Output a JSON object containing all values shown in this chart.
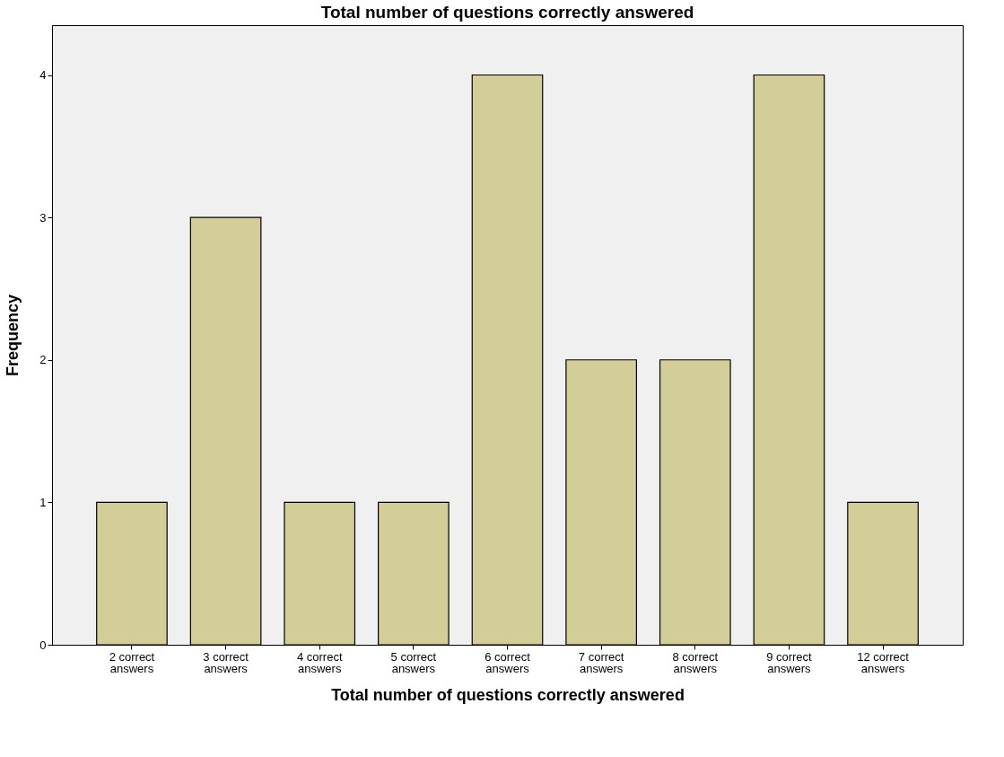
{
  "chart_data": {
    "type": "bar",
    "title": "Total number of questions correctly answered",
    "xlabel": "Total number of questions correctly answered",
    "ylabel": "Frequency",
    "categories": [
      "2 correct answers",
      "3 correct answers",
      "4 correct answers",
      "5 correct answers",
      "6 correct answers",
      "7 correct answers",
      "8 correct answers",
      "9 correct answers",
      "12 correct answers"
    ],
    "values": [
      1,
      3,
      1,
      1,
      4,
      2,
      2,
      4,
      1
    ],
    "color": "#d3ce97",
    "ylim": [
      0,
      4.35
    ],
    "yticks": [
      0,
      1,
      2,
      3,
      4
    ],
    "grid": false
  }
}
